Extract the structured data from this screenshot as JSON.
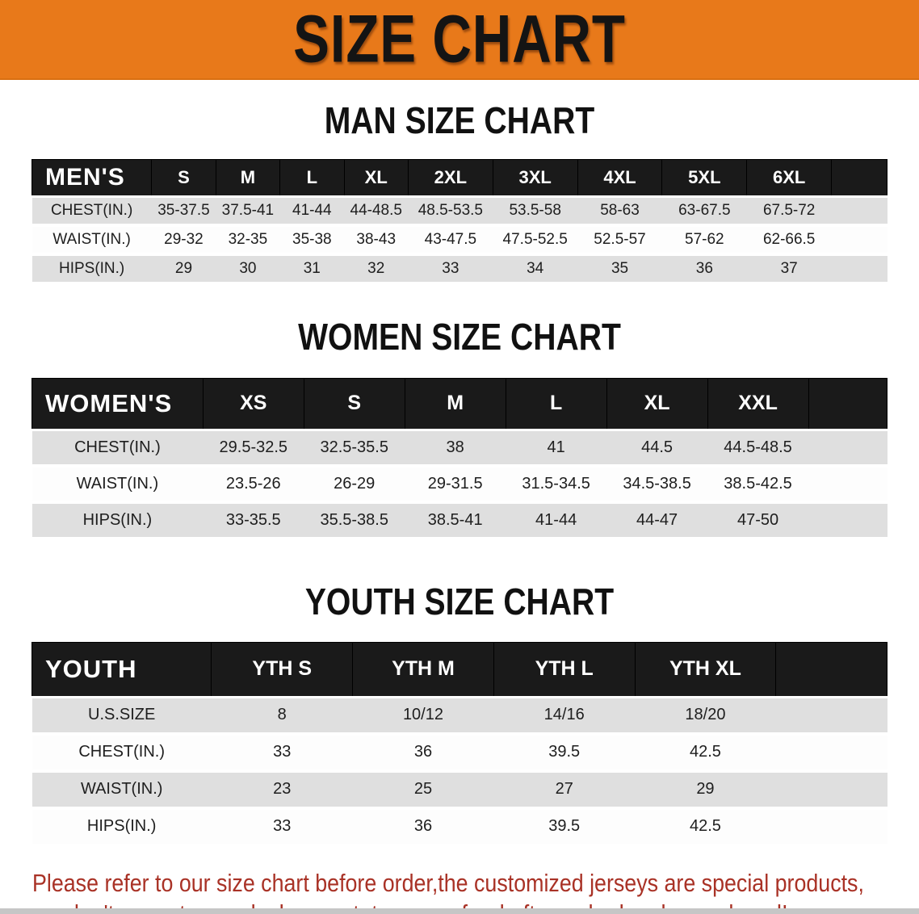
{
  "banner": {
    "title": "SIZE CHART",
    "bg_color": "#E8791A",
    "text_color": "#141414"
  },
  "colors": {
    "table_header_bg": "#1A1A1A",
    "table_row_alt_bg": "#DFDFDF",
    "footer_text": "#A93226"
  },
  "sections": [
    {
      "id": "men",
      "heading": "MAN SIZE CHART",
      "table": {
        "label": "MEN'S",
        "columns": [
          "S",
          "M",
          "L",
          "XL",
          "2XL",
          "3XL",
          "4XL",
          "5XL",
          "6XL"
        ],
        "rows": [
          {
            "label": "CHEST(IN.)",
            "values": [
              "35-37.5",
              "37.5-41",
              "41-44",
              "44-48.5",
              "48.5-53.5",
              "53.5-58",
              "58-63",
              "63-67.5",
              "67.5-72"
            ]
          },
          {
            "label": "WAIST(IN.)",
            "values": [
              "29-32",
              "32-35",
              "35-38",
              "38-43",
              "43-47.5",
              "47.5-52.5",
              "52.5-57",
              "57-62",
              "62-66.5"
            ]
          },
          {
            "label": "HIPS(IN.)",
            "values": [
              "29",
              "30",
              "31",
              "32",
              "33",
              "34",
              "35",
              "36",
              "37"
            ]
          }
        ]
      }
    },
    {
      "id": "women",
      "heading": "WOMEN SIZE CHART",
      "table": {
        "label": "WOMEN'S",
        "columns": [
          "XS",
          "S",
          "M",
          "L",
          "XL",
          "XXL"
        ],
        "rows": [
          {
            "label": "CHEST(IN.)",
            "values": [
              "29.5-32.5",
              "32.5-35.5",
              "38",
              "41",
              "44.5",
              "44.5-48.5"
            ]
          },
          {
            "label": "WAIST(IN.)",
            "values": [
              "23.5-26",
              "26-29",
              "29-31.5",
              "31.5-34.5",
              "34.5-38.5",
              "38.5-42.5"
            ]
          },
          {
            "label": "HIPS(IN.)",
            "values": [
              "33-35.5",
              "35.5-38.5",
              "38.5-41",
              "41-44",
              "44-47",
              "47-50"
            ]
          }
        ]
      }
    },
    {
      "id": "youth",
      "heading": "YOUTH SIZE CHART",
      "table": {
        "label": "YOUTH",
        "columns": [
          "YTH S",
          "YTH M",
          "YTH L",
          "YTH XL"
        ],
        "rows": [
          {
            "label": "U.S.SIZE",
            "values": [
              "8",
              "10/12",
              "14/16",
              "18/20"
            ]
          },
          {
            "label": "CHEST(IN.)",
            "values": [
              "33",
              "36",
              "39.5",
              "42.5"
            ]
          },
          {
            "label": "WAIST(IN.)",
            "values": [
              "23",
              "25",
              "27",
              "29"
            ]
          },
          {
            "label": "HIPS(IN.)",
            "values": [
              "33",
              "36",
              "39.5",
              "42.5"
            ]
          }
        ]
      }
    }
  ],
  "footer": {
    "line1": "Please refer to our size chart before order,the customized jerseys are special products,",
    "line2": "we don't accept cancel, change, teturn or refund after order has been placed!"
  }
}
